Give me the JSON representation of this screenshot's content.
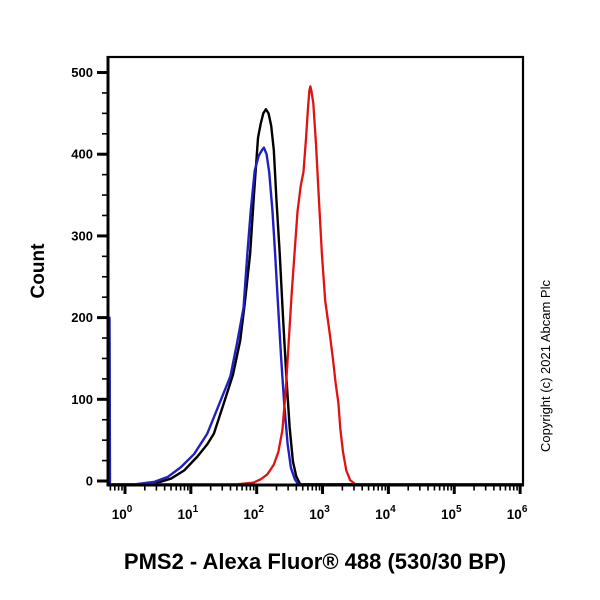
{
  "title": "PMS2 - Alexa Fluor® 488 (530/30 BP)",
  "copyright": "Copyright (c) 2021 Abcam Plc",
  "background_color": "#ffffff",
  "axis_color": "#000000",
  "y_axis": {
    "label": "Count",
    "tick_values": [
      0,
      100,
      200,
      300,
      400,
      500
    ],
    "tick_labels": [
      "0",
      "100",
      "200",
      "300",
      "400",
      "500"
    ],
    "minor_step": 25,
    "range": [
      -4.9,
      519
    ]
  },
  "x_axis": {
    "scale": "log10",
    "base_label": "10",
    "tick_exponents": [
      0,
      1,
      2,
      3,
      4,
      5,
      6
    ],
    "minor_multiples": [
      2,
      3,
      4,
      5,
      6,
      7,
      8,
      9
    ],
    "log_range": [
      -0.258,
      6.044
    ]
  },
  "chart_data": {
    "type": "line",
    "subtype": "flow-cytometry-histogram",
    "title": "PMS2 - Alexa Fluor® 488 (530/30 BP)",
    "xlabel": "PMS2 - Alexa Fluor® 488 (530/30 BP)",
    "ylabel": "Count",
    "x_scale": "log10",
    "xlim_log": [
      -0.258,
      6.044
    ],
    "ylim": [
      -4.9,
      519
    ],
    "grid": false,
    "legend": "none",
    "series": [
      {
        "name": "black-control-curve",
        "color": "#000000",
        "stroke_width": 2.4,
        "peak": {
          "x_log": 2.14,
          "count": 455
        },
        "points": [
          [
            -0.258,
            -4
          ],
          [
            -0.245,
            -4
          ],
          [
            -0.238,
            185
          ],
          [
            -0.231,
            -4
          ],
          [
            0.2,
            -4
          ],
          [
            0.5,
            -2
          ],
          [
            0.7,
            3
          ],
          [
            0.9,
            13
          ],
          [
            1.1,
            30
          ],
          [
            1.25,
            45
          ],
          [
            1.35,
            58
          ],
          [
            1.5,
            95
          ],
          [
            1.64,
            130
          ],
          [
            1.75,
            172
          ],
          [
            1.82,
            218
          ],
          [
            1.9,
            278
          ],
          [
            1.96,
            352
          ],
          [
            2.02,
            420
          ],
          [
            2.06,
            437
          ],
          [
            2.1,
            450
          ],
          [
            2.14,
            455
          ],
          [
            2.18,
            450
          ],
          [
            2.22,
            435
          ],
          [
            2.26,
            405
          ],
          [
            2.3,
            344
          ],
          [
            2.35,
            278
          ],
          [
            2.4,
            200
          ],
          [
            2.45,
            128
          ],
          [
            2.5,
            66
          ],
          [
            2.55,
            24
          ],
          [
            2.6,
            6
          ],
          [
            2.66,
            -4
          ],
          [
            6.04,
            -4
          ]
        ]
      },
      {
        "name": "blue-control-curve",
        "color": "#2020c0",
        "stroke_width": 2.4,
        "peak": {
          "x_log": 2.11,
          "count": 408
        },
        "points": [
          [
            -0.258,
            -4
          ],
          [
            -0.242,
            -4
          ],
          [
            -0.235,
            200
          ],
          [
            -0.228,
            -4
          ],
          [
            0.15,
            -4
          ],
          [
            0.45,
            -1
          ],
          [
            0.65,
            5
          ],
          [
            0.85,
            17
          ],
          [
            1.05,
            33
          ],
          [
            1.25,
            58
          ],
          [
            1.42,
            92
          ],
          [
            1.6,
            128
          ],
          [
            1.7,
            168
          ],
          [
            1.8,
            212
          ],
          [
            1.86,
            280
          ],
          [
            1.91,
            331
          ],
          [
            1.97,
            380
          ],
          [
            2.03,
            398
          ],
          [
            2.08,
            405
          ],
          [
            2.11,
            408
          ],
          [
            2.15,
            400
          ],
          [
            2.19,
            378
          ],
          [
            2.24,
            330
          ],
          [
            2.28,
            278
          ],
          [
            2.32,
            221
          ],
          [
            2.37,
            152
          ],
          [
            2.42,
            92
          ],
          [
            2.47,
            45
          ],
          [
            2.52,
            16
          ],
          [
            2.58,
            2
          ],
          [
            2.63,
            -4
          ],
          [
            6.04,
            -4
          ]
        ]
      },
      {
        "name": "red-pms2-curve",
        "color": "#e01212",
        "stroke_width": 2.3,
        "peak": {
          "x_log": 2.815,
          "count": 483
        },
        "points": [
          [
            -0.258,
            -4
          ],
          [
            1.7,
            -4
          ],
          [
            1.95,
            -2
          ],
          [
            2.06,
            2
          ],
          [
            2.16,
            8
          ],
          [
            2.26,
            20
          ],
          [
            2.33,
            36
          ],
          [
            2.39,
            62
          ],
          [
            2.44,
            110
          ],
          [
            2.48,
            162
          ],
          [
            2.53,
            228
          ],
          [
            2.58,
            285
          ],
          [
            2.62,
            330
          ],
          [
            2.67,
            362
          ],
          [
            2.71,
            378
          ],
          [
            2.75,
            420
          ],
          [
            2.78,
            458
          ],
          [
            2.8,
            478
          ],
          [
            2.815,
            483
          ],
          [
            2.83,
            478
          ],
          [
            2.86,
            462
          ],
          [
            2.9,
            413
          ],
          [
            2.94,
            352
          ],
          [
            2.99,
            278
          ],
          [
            3.04,
            221
          ],
          [
            3.11,
            180
          ],
          [
            3.16,
            148
          ],
          [
            3.2,
            119
          ],
          [
            3.24,
            96
          ],
          [
            3.27,
            64
          ],
          [
            3.31,
            36
          ],
          [
            3.36,
            13
          ],
          [
            3.42,
            1
          ],
          [
            3.5,
            -4
          ],
          [
            6.04,
            -4
          ]
        ]
      }
    ]
  }
}
